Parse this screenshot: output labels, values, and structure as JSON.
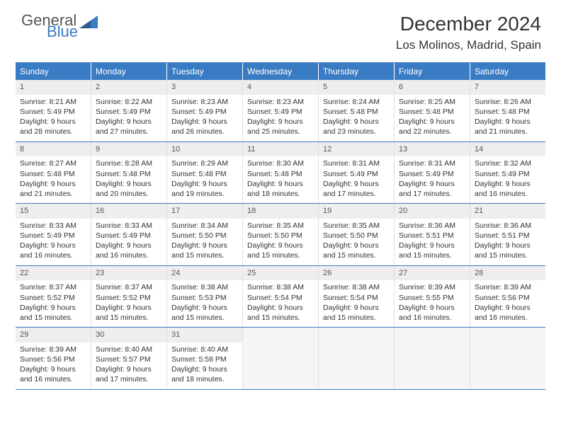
{
  "logo": {
    "general": "General",
    "blue": "Blue"
  },
  "title": "December 2024",
  "location": "Los Molinos, Madrid, Spain",
  "colors": {
    "accent": "#3a7cc4",
    "header_bg": "#3a7cc4",
    "header_text": "#ffffff",
    "daynum_bg": "#eeeeee",
    "text": "#333333",
    "background": "#ffffff"
  },
  "dow": [
    "Sunday",
    "Monday",
    "Tuesday",
    "Wednesday",
    "Thursday",
    "Friday",
    "Saturday"
  ],
  "weeks": [
    [
      {
        "n": "1",
        "sr": "Sunrise: 8:21 AM",
        "ss": "Sunset: 5:49 PM",
        "dl": "Daylight: 9 hours and 28 minutes."
      },
      {
        "n": "2",
        "sr": "Sunrise: 8:22 AM",
        "ss": "Sunset: 5:49 PM",
        "dl": "Daylight: 9 hours and 27 minutes."
      },
      {
        "n": "3",
        "sr": "Sunrise: 8:23 AM",
        "ss": "Sunset: 5:49 PM",
        "dl": "Daylight: 9 hours and 26 minutes."
      },
      {
        "n": "4",
        "sr": "Sunrise: 8:23 AM",
        "ss": "Sunset: 5:49 PM",
        "dl": "Daylight: 9 hours and 25 minutes."
      },
      {
        "n": "5",
        "sr": "Sunrise: 8:24 AM",
        "ss": "Sunset: 5:48 PM",
        "dl": "Daylight: 9 hours and 23 minutes."
      },
      {
        "n": "6",
        "sr": "Sunrise: 8:25 AM",
        "ss": "Sunset: 5:48 PM",
        "dl": "Daylight: 9 hours and 22 minutes."
      },
      {
        "n": "7",
        "sr": "Sunrise: 8:26 AM",
        "ss": "Sunset: 5:48 PM",
        "dl": "Daylight: 9 hours and 21 minutes."
      }
    ],
    [
      {
        "n": "8",
        "sr": "Sunrise: 8:27 AM",
        "ss": "Sunset: 5:48 PM",
        "dl": "Daylight: 9 hours and 21 minutes."
      },
      {
        "n": "9",
        "sr": "Sunrise: 8:28 AM",
        "ss": "Sunset: 5:48 PM",
        "dl": "Daylight: 9 hours and 20 minutes."
      },
      {
        "n": "10",
        "sr": "Sunrise: 8:29 AM",
        "ss": "Sunset: 5:48 PM",
        "dl": "Daylight: 9 hours and 19 minutes."
      },
      {
        "n": "11",
        "sr": "Sunrise: 8:30 AM",
        "ss": "Sunset: 5:48 PM",
        "dl": "Daylight: 9 hours and 18 minutes."
      },
      {
        "n": "12",
        "sr": "Sunrise: 8:31 AM",
        "ss": "Sunset: 5:49 PM",
        "dl": "Daylight: 9 hours and 17 minutes."
      },
      {
        "n": "13",
        "sr": "Sunrise: 8:31 AM",
        "ss": "Sunset: 5:49 PM",
        "dl": "Daylight: 9 hours and 17 minutes."
      },
      {
        "n": "14",
        "sr": "Sunrise: 8:32 AM",
        "ss": "Sunset: 5:49 PM",
        "dl": "Daylight: 9 hours and 16 minutes."
      }
    ],
    [
      {
        "n": "15",
        "sr": "Sunrise: 8:33 AM",
        "ss": "Sunset: 5:49 PM",
        "dl": "Daylight: 9 hours and 16 minutes."
      },
      {
        "n": "16",
        "sr": "Sunrise: 8:33 AM",
        "ss": "Sunset: 5:49 PM",
        "dl": "Daylight: 9 hours and 16 minutes."
      },
      {
        "n": "17",
        "sr": "Sunrise: 8:34 AM",
        "ss": "Sunset: 5:50 PM",
        "dl": "Daylight: 9 hours and 15 minutes."
      },
      {
        "n": "18",
        "sr": "Sunrise: 8:35 AM",
        "ss": "Sunset: 5:50 PM",
        "dl": "Daylight: 9 hours and 15 minutes."
      },
      {
        "n": "19",
        "sr": "Sunrise: 8:35 AM",
        "ss": "Sunset: 5:50 PM",
        "dl": "Daylight: 9 hours and 15 minutes."
      },
      {
        "n": "20",
        "sr": "Sunrise: 8:36 AM",
        "ss": "Sunset: 5:51 PM",
        "dl": "Daylight: 9 hours and 15 minutes."
      },
      {
        "n": "21",
        "sr": "Sunrise: 8:36 AM",
        "ss": "Sunset: 5:51 PM",
        "dl": "Daylight: 9 hours and 15 minutes."
      }
    ],
    [
      {
        "n": "22",
        "sr": "Sunrise: 8:37 AM",
        "ss": "Sunset: 5:52 PM",
        "dl": "Daylight: 9 hours and 15 minutes."
      },
      {
        "n": "23",
        "sr": "Sunrise: 8:37 AM",
        "ss": "Sunset: 5:52 PM",
        "dl": "Daylight: 9 hours and 15 minutes."
      },
      {
        "n": "24",
        "sr": "Sunrise: 8:38 AM",
        "ss": "Sunset: 5:53 PM",
        "dl": "Daylight: 9 hours and 15 minutes."
      },
      {
        "n": "25",
        "sr": "Sunrise: 8:38 AM",
        "ss": "Sunset: 5:54 PM",
        "dl": "Daylight: 9 hours and 15 minutes."
      },
      {
        "n": "26",
        "sr": "Sunrise: 8:38 AM",
        "ss": "Sunset: 5:54 PM",
        "dl": "Daylight: 9 hours and 15 minutes."
      },
      {
        "n": "27",
        "sr": "Sunrise: 8:39 AM",
        "ss": "Sunset: 5:55 PM",
        "dl": "Daylight: 9 hours and 16 minutes."
      },
      {
        "n": "28",
        "sr": "Sunrise: 8:39 AM",
        "ss": "Sunset: 5:56 PM",
        "dl": "Daylight: 9 hours and 16 minutes."
      }
    ],
    [
      {
        "n": "29",
        "sr": "Sunrise: 8:39 AM",
        "ss": "Sunset: 5:56 PM",
        "dl": "Daylight: 9 hours and 16 minutes."
      },
      {
        "n": "30",
        "sr": "Sunrise: 8:40 AM",
        "ss": "Sunset: 5:57 PM",
        "dl": "Daylight: 9 hours and 17 minutes."
      },
      {
        "n": "31",
        "sr": "Sunrise: 8:40 AM",
        "ss": "Sunset: 5:58 PM",
        "dl": "Daylight: 9 hours and 18 minutes."
      },
      null,
      null,
      null,
      null
    ]
  ]
}
